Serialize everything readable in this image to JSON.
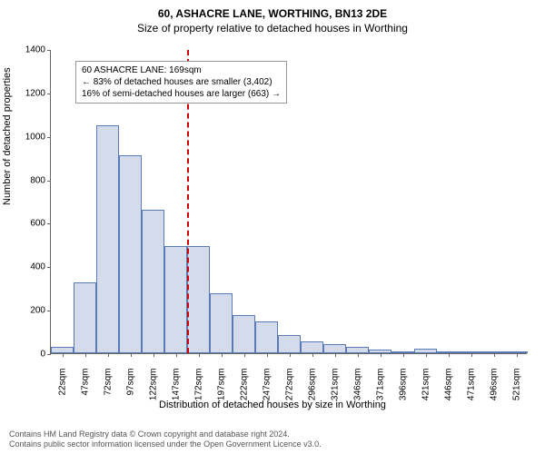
{
  "title": "60, ASHACRE LANE, WORTHING, BN13 2DE",
  "subtitle": "Size of property relative to detached houses in Worthing",
  "ylabel": "Number of detached properties",
  "xlabel": "Distribution of detached houses by size in Worthing",
  "chart": {
    "type": "histogram",
    "ylim": [
      0,
      1400
    ],
    "ytick_step": 200,
    "bar_fill": "#d4dcec",
    "bar_stroke": "#5b7bb8",
    "reference_line_color": "#cc0000",
    "reference_x_index": 6,
    "categories": [
      "22sqm",
      "47sqm",
      "72sqm",
      "97sqm",
      "122sqm",
      "147sqm",
      "172sqm",
      "197sqm",
      "222sqm",
      "247sqm",
      "272sqm",
      "296sqm",
      "321sqm",
      "346sqm",
      "371sqm",
      "396sqm",
      "421sqm",
      "446sqm",
      "471sqm",
      "496sqm",
      "521sqm"
    ],
    "values": [
      30,
      325,
      1050,
      910,
      660,
      495,
      495,
      275,
      175,
      145,
      85,
      55,
      40,
      30,
      18,
      8,
      20,
      4,
      3,
      2,
      1
    ],
    "bar_width_ratio": 0.98
  },
  "info_box": {
    "line1": "60 ASHACRE LANE: 169sqm",
    "line2": "← 83% of detached houses are smaller (3,402)",
    "line3": "16% of semi-detached houses are larger (663) →"
  },
  "footer": {
    "line1": "Contains HM Land Registry data © Crown copyright and database right 2024.",
    "line2": "Contains public sector information licensed under the Open Government Licence v3.0."
  }
}
